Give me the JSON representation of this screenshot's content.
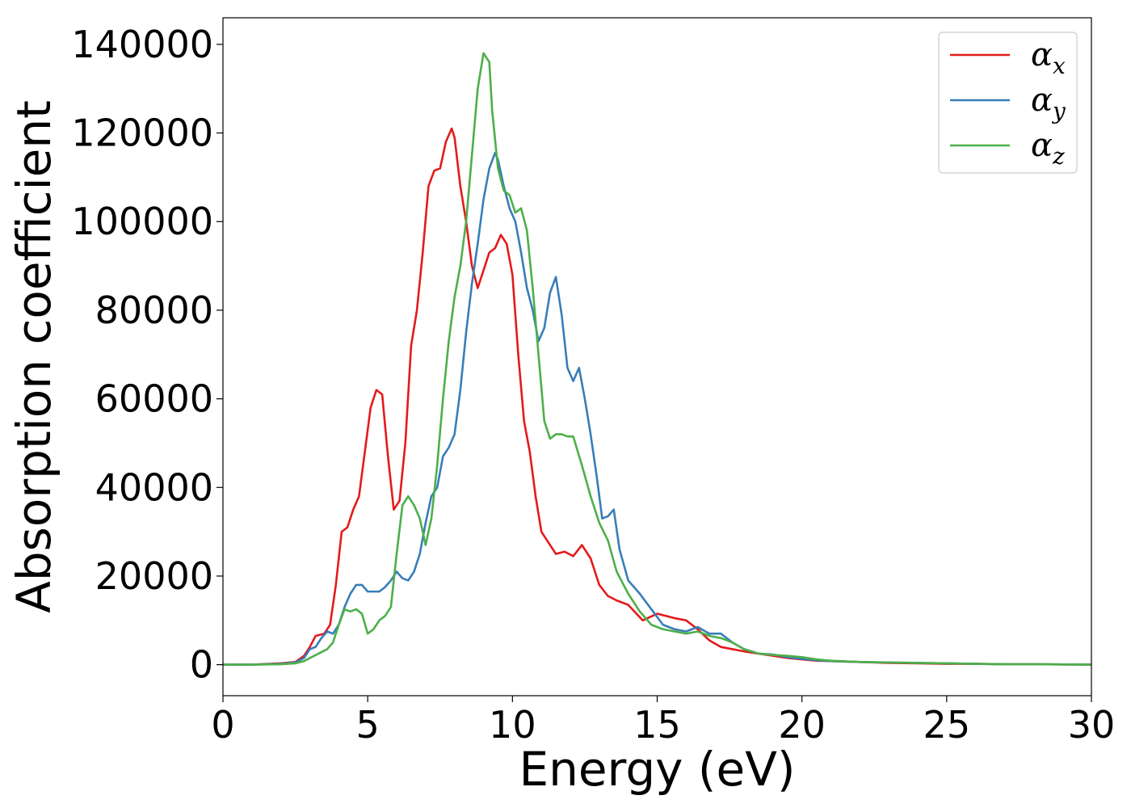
{
  "chart_data": {
    "type": "line",
    "title": "",
    "xlabel": "Energy (eV)",
    "ylabel": "Absorption coefficient",
    "xlim": [
      0,
      30
    ],
    "ylim": [
      -7000,
      146000
    ],
    "xticks": [
      0,
      5,
      10,
      15,
      20,
      25,
      30
    ],
    "yticks": [
      0,
      20000,
      40000,
      60000,
      80000,
      100000,
      120000,
      140000
    ],
    "grid": false,
    "legend_position": "top-right",
    "series": [
      {
        "name": "α",
        "subscript": "x",
        "color": "#e41a1c",
        "x": [
          0,
          1,
          2,
          2.5,
          2.8,
          3,
          3.2,
          3.5,
          3.7,
          3.9,
          4.1,
          4.3,
          4.5,
          4.7,
          4.9,
          5.1,
          5.3,
          5.5,
          5.7,
          5.9,
          6.1,
          6.3,
          6.5,
          6.7,
          6.9,
          7.1,
          7.3,
          7.5,
          7.7,
          7.9,
          8.0,
          8.2,
          8.4,
          8.6,
          8.8,
          9.0,
          9.2,
          9.4,
          9.6,
          9.8,
          10.0,
          10.2,
          10.4,
          10.6,
          10.8,
          11.0,
          11.2,
          11.5,
          11.8,
          12.1,
          12.4,
          12.7,
          13.0,
          13.3,
          13.6,
          14.0,
          14.5,
          15.0,
          15.3,
          15.6,
          16.0,
          16.4,
          16.8,
          17.2,
          17.6,
          18.0,
          18.5,
          19.0,
          19.5,
          20.0,
          20.5,
          21.0,
          22,
          23,
          24,
          25,
          26,
          27,
          28,
          29,
          30
        ],
        "y": [
          0,
          0,
          300,
          600,
          2000,
          4000,
          6500,
          7000,
          9000,
          18000,
          30000,
          31000,
          35000,
          38000,
          48000,
          58000,
          62000,
          61000,
          47000,
          35000,
          37000,
          50000,
          72000,
          80000,
          93000,
          108000,
          111500,
          112000,
          118000,
          121000,
          119000,
          108000,
          100000,
          90000,
          85000,
          89000,
          93000,
          94000,
          97000,
          95000,
          88000,
          70000,
          55000,
          48000,
          38000,
          30000,
          28000,
          25000,
          25500,
          24500,
          27000,
          24000,
          18000,
          15500,
          14500,
          13500,
          10000,
          11500,
          11000,
          10500,
          10000,
          8000,
          5500,
          4000,
          3500,
          3000,
          2500,
          2000,
          1500,
          1200,
          900,
          800,
          600,
          400,
          300,
          200,
          200,
          100,
          100,
          50,
          0
        ]
      },
      {
        "name": "α",
        "subscript": "y",
        "color": "#377eb8",
        "x": [
          0,
          1,
          2,
          2.5,
          2.8,
          3,
          3.2,
          3.4,
          3.6,
          3.8,
          4.0,
          4.2,
          4.4,
          4.6,
          4.8,
          5.0,
          5.2,
          5.4,
          5.6,
          5.8,
          6.0,
          6.2,
          6.4,
          6.6,
          6.8,
          7.0,
          7.2,
          7.4,
          7.6,
          7.8,
          8.0,
          8.2,
          8.4,
          8.6,
          8.8,
          9.0,
          9.2,
          9.4,
          9.5,
          9.7,
          9.9,
          10.1,
          10.3,
          10.5,
          10.7,
          10.9,
          11.1,
          11.3,
          11.5,
          11.7,
          11.9,
          12.1,
          12.3,
          12.5,
          12.7,
          12.9,
          13.1,
          13.3,
          13.5,
          13.7,
          14.0,
          14.4,
          14.8,
          15.2,
          15.6,
          16.0,
          16.4,
          16.8,
          17.2,
          17.6,
          18.0,
          18.5,
          19.0,
          19.5,
          20.0,
          20.5,
          21.0,
          22,
          23,
          24,
          25,
          26,
          27,
          28,
          29,
          30
        ],
        "y": [
          0,
          0,
          200,
          500,
          1500,
          3500,
          4000,
          6000,
          7500,
          7000,
          9000,
          13000,
          16000,
          18000,
          18000,
          16500,
          16500,
          16500,
          17500,
          19000,
          21000,
          19500,
          19000,
          21000,
          25000,
          32000,
          38000,
          40000,
          47000,
          49000,
          52000,
          62000,
          75000,
          86000,
          95000,
          105000,
          112000,
          115500,
          114000,
          108000,
          103000,
          100000,
          93000,
          85000,
          80000,
          73000,
          76000,
          84000,
          87500,
          79000,
          67000,
          64000,
          67000,
          60000,
          52000,
          43000,
          33000,
          33500,
          35000,
          26000,
          19000,
          16000,
          12500,
          9000,
          8000,
          7500,
          8500,
          7000,
          7000,
          5000,
          3500,
          2500,
          2300,
          1700,
          1300,
          1000,
          800,
          600,
          500,
          400,
          300,
          200,
          100,
          100,
          50,
          0
        ]
      },
      {
        "name": "α",
        "subscript": "z",
        "color": "#4daf4a",
        "x": [
          0,
          1,
          2,
          2.5,
          2.8,
          3,
          3.3,
          3.6,
          3.8,
          4.0,
          4.2,
          4.4,
          4.6,
          4.8,
          5.0,
          5.2,
          5.4,
          5.6,
          5.8,
          6.0,
          6.2,
          6.4,
          6.6,
          6.8,
          7.0,
          7.2,
          7.4,
          7.6,
          7.8,
          8.0,
          8.2,
          8.4,
          8.6,
          8.8,
          9.0,
          9.2,
          9.3,
          9.5,
          9.7,
          9.9,
          10.1,
          10.3,
          10.5,
          10.7,
          10.9,
          11.1,
          11.3,
          11.5,
          11.7,
          11.9,
          12.1,
          12.4,
          12.7,
          13.0,
          13.3,
          13.6,
          14.0,
          14.4,
          14.8,
          15.2,
          15.6,
          16.0,
          16.4,
          16.8,
          17.2,
          17.6,
          18.0,
          18.5,
          19.0,
          19.5,
          20.0,
          20.5,
          21.0,
          22,
          23,
          24,
          25,
          26,
          27,
          28,
          29,
          30
        ],
        "y": [
          0,
          0,
          100,
          300,
          800,
          1500,
          2500,
          3500,
          5000,
          9000,
          12500,
          12000,
          12500,
          11500,
          7000,
          8000,
          10000,
          11000,
          13000,
          25000,
          36000,
          38000,
          36000,
          33000,
          27000,
          33000,
          45000,
          60000,
          73000,
          83000,
          90000,
          100000,
          115000,
          130000,
          138000,
          136000,
          125000,
          112000,
          107000,
          106000,
          102000,
          103000,
          98000,
          85000,
          70000,
          55000,
          51000,
          52000,
          52000,
          51500,
          51500,
          45000,
          38000,
          32000,
          28000,
          21000,
          16000,
          12000,
          9000,
          8000,
          7500,
          7000,
          7500,
          6500,
          6000,
          5000,
          3500,
          2500,
          2200,
          2000,
          1700,
          1200,
          900,
          600,
          500,
          400,
          300,
          200,
          100,
          100,
          50,
          0
        ]
      }
    ]
  }
}
